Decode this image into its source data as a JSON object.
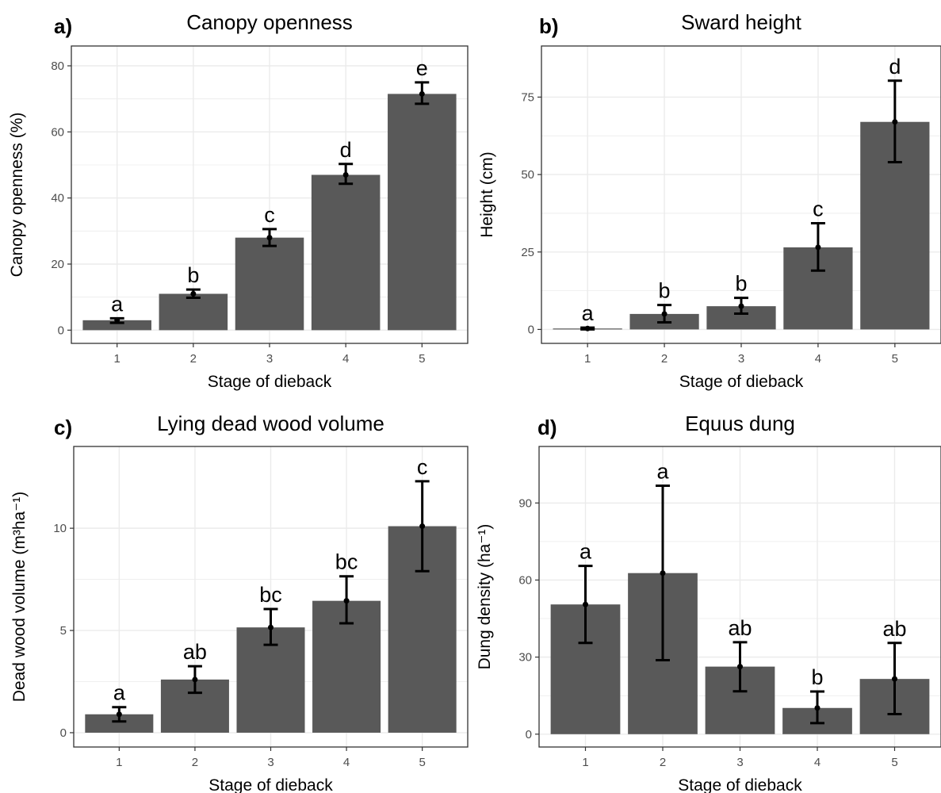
{
  "colors": {
    "bar": "#595959",
    "grid": "#ebebeb",
    "panel_border": "#333333",
    "text": "#000000",
    "tick_text": "#4d4d4d"
  },
  "chart_data": [
    {
      "type": "bar",
      "tag": "a)",
      "title": "Canopy openness",
      "xlabel": "Stage of dieback",
      "ylabel": "Canopy openness (%)",
      "categories": [
        "1",
        "2",
        "3",
        "4",
        "5"
      ],
      "values": [
        3,
        11,
        28,
        47,
        71.5
      ],
      "error_low": [
        2.2,
        9.8,
        25.5,
        44.3,
        68.5
      ],
      "error_high": [
        3.6,
        12.3,
        30.6,
        50.3,
        75
      ],
      "letters": [
        "a",
        "b",
        "c",
        "d",
        "e"
      ],
      "yticks": [
        0,
        20,
        40,
        60,
        80
      ],
      "ylim": [
        -4,
        86
      ],
      "grid": true
    },
    {
      "type": "bar",
      "tag": "b)",
      "title": "Sward height",
      "xlabel": "Stage of dieback",
      "ylabel": "Height (cm)",
      "categories": [
        "1",
        "2",
        "3",
        "4",
        "5"
      ],
      "values": [
        0.3,
        5,
        7.5,
        26.5,
        67
      ],
      "error_low": [
        0,
        2.3,
        5.1,
        19,
        54
      ],
      "error_high": [
        0.6,
        7.9,
        10.2,
        34.3,
        80.3
      ],
      "letters": [
        "a",
        "b",
        "b",
        "c",
        "d"
      ],
      "yticks": [
        0,
        25,
        50,
        75
      ],
      "ylim": [
        -4.5,
        91.5
      ],
      "grid": true
    },
    {
      "type": "bar",
      "tag": "c)",
      "title": "Lying dead wood volume",
      "xlabel": "Stage of dieback",
      "ylabel": "Dead wood volume (m³ha⁻¹)",
      "categories": [
        "1",
        "2",
        "3",
        "4",
        "5"
      ],
      "values": [
        0.9,
        2.6,
        5.15,
        6.45,
        10.1
      ],
      "error_low": [
        0.55,
        1.95,
        4.3,
        5.35,
        7.9
      ],
      "error_high": [
        1.25,
        3.25,
        6.05,
        7.65,
        12.3
      ],
      "letters": [
        "a",
        "ab",
        "bc",
        "bc",
        "c"
      ],
      "yticks": [
        0,
        5,
        10
      ],
      "ylim": [
        -0.7,
        14
      ],
      "grid": true
    },
    {
      "type": "bar",
      "tag": "d)",
      "title": "Equus dung",
      "xlabel": "Stage of dieback",
      "ylabel": "Dung density (ha⁻¹)",
      "categories": [
        "1",
        "2",
        "3",
        "4",
        "5"
      ],
      "values": [
        50.5,
        62.7,
        26.3,
        10.2,
        21.5
      ],
      "error_low": [
        35.5,
        28.8,
        16.7,
        4.3,
        7.8
      ],
      "error_high": [
        65.5,
        96.7,
        35.8,
        16.6,
        35.5
      ],
      "letters": [
        "a",
        "a",
        "ab",
        "b",
        "ab"
      ],
      "yticks": [
        0,
        30,
        60,
        90
      ],
      "ylim": [
        -5,
        112
      ],
      "grid": true
    }
  ]
}
